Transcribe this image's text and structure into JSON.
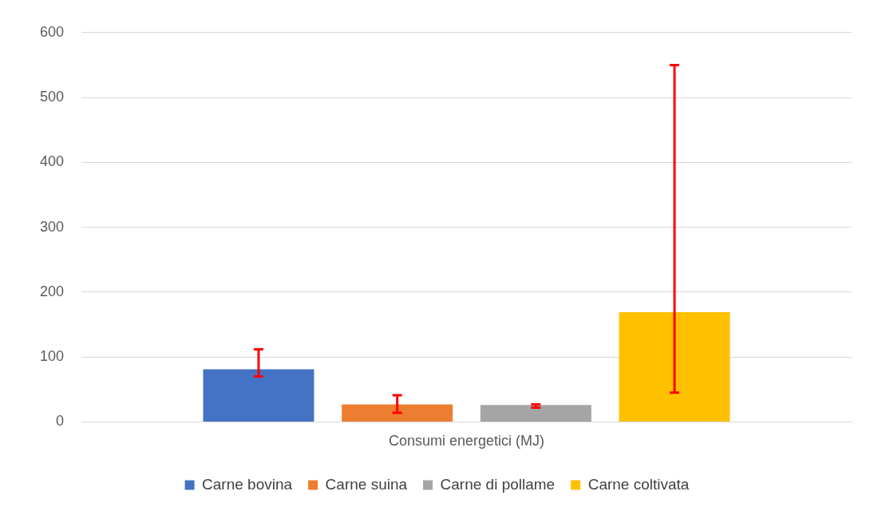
{
  "chart_data": {
    "type": "bar",
    "categories": [
      "Consumi energetici (MJ)"
    ],
    "series": [
      {
        "name": "Carne bovina",
        "color": "#4472c4",
        "values": [
          81
        ],
        "errors": [
          [
            70,
            112
          ]
        ]
      },
      {
        "name": "Carne suina",
        "color": "#ed7d31",
        "values": [
          27
        ],
        "errors": [
          [
            14,
            41
          ]
        ]
      },
      {
        "name": "Carne di pollame",
        "color": "#a5a5a5",
        "values": [
          26
        ],
        "errors": [
          [
            22,
            27
          ]
        ]
      },
      {
        "name": "Carne coltivata",
        "color": "#ffc000",
        "values": [
          169
        ],
        "errors": [
          [
            45,
            550
          ]
        ]
      }
    ],
    "ylim": [
      0,
      600
    ],
    "yticks": [
      0,
      100,
      200,
      300,
      400,
      500,
      600
    ],
    "grid": "y",
    "legend": "bottom"
  }
}
